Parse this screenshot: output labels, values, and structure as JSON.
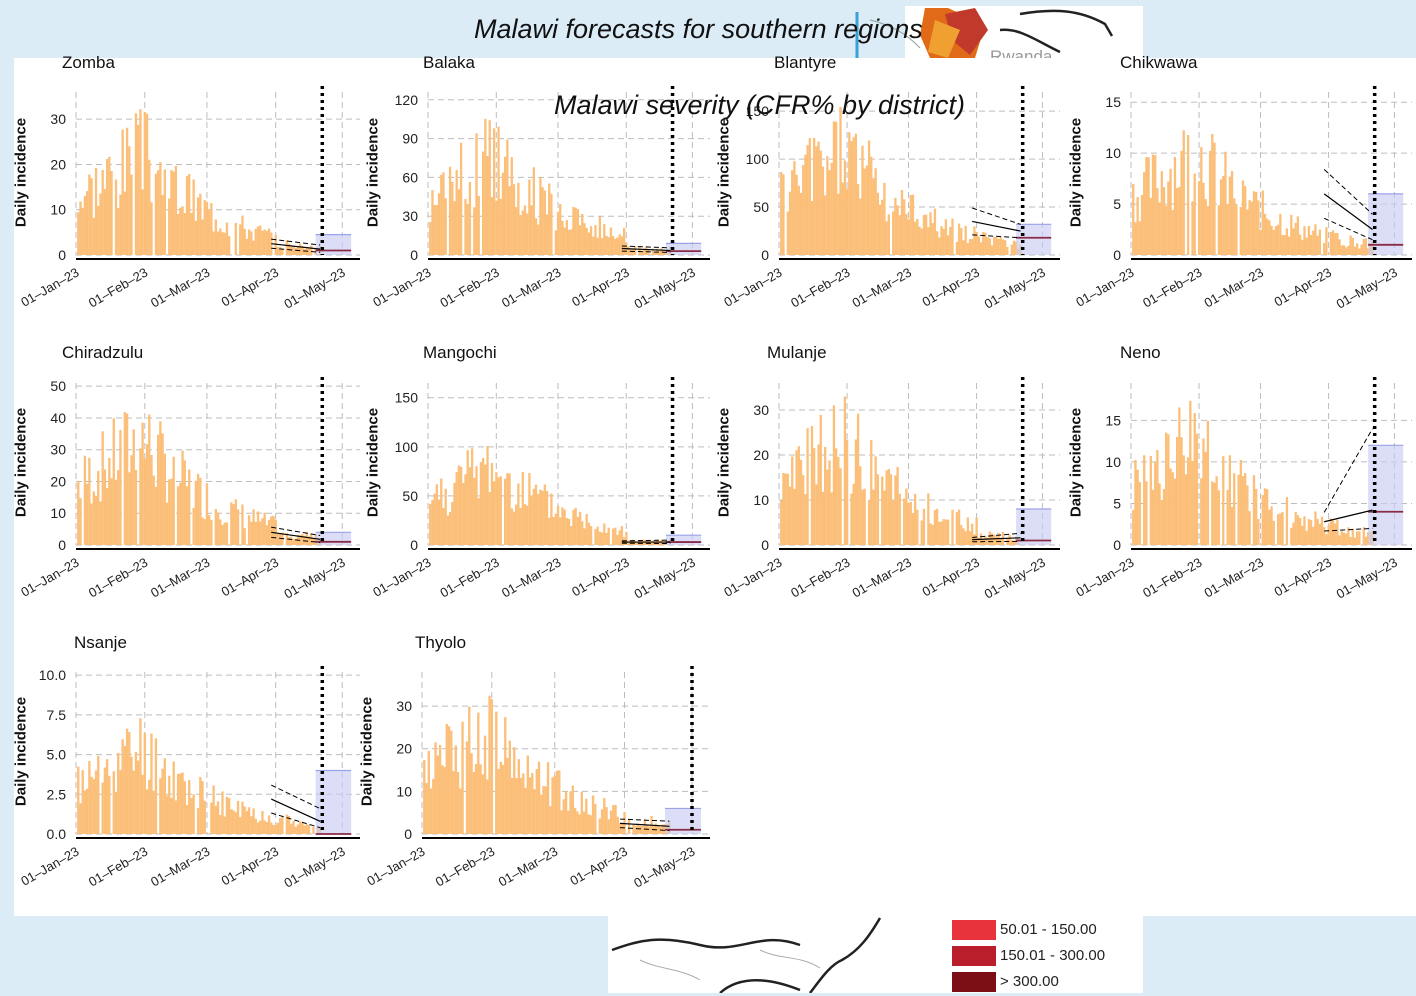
{
  "overlay": {
    "title": "Malawi forecasts for southern regions",
    "subtitle": "Malawi severity (CFR% by district)",
    "map_label": "Rwanda",
    "legend": [
      {
        "label": "50.01 - 150.00",
        "color": "#e8323c"
      },
      {
        "label": "150.01 - 300.00",
        "color": "#b81f2b"
      },
      {
        "label": "> 300.00",
        "color": "#7c0f16"
      }
    ]
  },
  "colors": {
    "bars": "#fbbf79",
    "forecast_band": "#c9cdf3",
    "forecast_line": "#8b2a45",
    "cutoff": "#000000"
  },
  "ylabel": "Daily incidence",
  "chart_data": [
    {
      "type": "bar",
      "title": "Zomba",
      "ylabel": "Daily incidence",
      "x_ticks": [
        "01–Jan–23",
        "01–Feb–23",
        "01–Mar–23",
        "01–Apr–23",
        "01–May–23"
      ],
      "y_ticks": [
        "0",
        "10",
        "20",
        "30"
      ],
      "ylim": [
        0,
        36
      ],
      "cutoff": "2023-04-22",
      "peak_level": 34,
      "tail_level": 4,
      "fit": {
        "start": 2.5,
        "end": 1.3,
        "upper_end": 2.2,
        "lower_end": 0.6
      },
      "forecast": {
        "median": 1,
        "upper": 4.5
      }
    },
    {
      "type": "bar",
      "title": "Balaka",
      "ylabel": "Daily incidence",
      "x_ticks": [
        "01–Jan–23",
        "01–Feb–23",
        "01–Mar–23",
        "01–Apr–23",
        "01–May–23"
      ],
      "y_ticks": [
        "0",
        "30",
        "60",
        "90",
        "120"
      ],
      "ylim": [
        0,
        126
      ],
      "cutoff": "2023-04-22",
      "peak_level": 117,
      "tail_level": 7,
      "fit": {
        "start": 5,
        "end": 3.5,
        "upper_end": 5.5,
        "lower_end": 2
      },
      "forecast": {
        "median": 3,
        "upper": 9
      }
    },
    {
      "type": "bar",
      "title": "Blantyre",
      "ylabel": "Daily incidence",
      "x_ticks": [
        "01–Jan–23",
        "01–Feb–23",
        "01–Mar–23",
        "01–Apr–23",
        "01–May–23"
      ],
      "y_ticks": [
        "0",
        "50",
        "100",
        "150"
      ],
      "ylim": [
        0,
        170
      ],
      "cutoff": "2023-04-22",
      "peak_level": 165,
      "tail_level": 40,
      "fit": {
        "start": 35,
        "end": 25,
        "upper_end": 32,
        "lower_end": 18
      },
      "forecast": {
        "median": 18,
        "upper": 32
      }
    },
    {
      "type": "bar",
      "title": "Chikwawa",
      "ylabel": "Daily incidence",
      "x_ticks": [
        "01–Jan–23",
        "01–Feb–23",
        "01–Mar–23",
        "01–Apr–23",
        "01–May–23"
      ],
      "y_ticks": [
        "0",
        "5",
        "10",
        "15"
      ],
      "ylim": [
        0,
        16
      ],
      "cutoff": "2023-04-22",
      "peak_level": 15,
      "tail_level": 10,
      "fit": {
        "start": 6,
        "end": 2.5,
        "upper_end": 4,
        "lower_end": 1.5
      },
      "forecast": {
        "median": 1,
        "upper": 6
      }
    },
    {
      "type": "bar",
      "title": "Chiradzulu",
      "ylabel": "Daily incidence",
      "x_ticks": [
        "01–Jan–23",
        "01–Feb–23",
        "01–Mar–23",
        "01–Apr–23",
        "01–May–23"
      ],
      "y_ticks": [
        "0",
        "10",
        "20",
        "30",
        "40",
        "50"
      ],
      "ylim": [
        0,
        51
      ],
      "cutoff": "2023-04-22",
      "peak_level": 50,
      "tail_level": 6,
      "fit": {
        "start": 4,
        "end": 1.8,
        "upper_end": 3,
        "lower_end": 0.8
      },
      "forecast": {
        "median": 1,
        "upper": 4
      }
    },
    {
      "type": "bar",
      "title": "Mangochi",
      "ylabel": "Daily incidence",
      "x_ticks": [
        "01–Jan–23",
        "01–Feb–23",
        "01–Mar–23",
        "01–Apr–23",
        "01–May–23"
      ],
      "y_ticks": [
        "0",
        "50",
        "100",
        "150"
      ],
      "ylim": [
        0,
        165
      ],
      "cutoff": "2023-04-22",
      "peak_level": 122,
      "tail_level": 6,
      "fit": {
        "start": 3,
        "end": 3,
        "upper_end": 5,
        "lower_end": 1.5
      },
      "forecast": {
        "median": 3,
        "upper": 10
      }
    },
    {
      "type": "bar",
      "title": "Mulanje",
      "ylabel": "Daily incidence",
      "x_ticks": [
        "01–Jan–23",
        "01–Feb–23",
        "01–Mar–23",
        "01–Apr–23",
        "01–May–23"
      ],
      "y_ticks": [
        "0",
        "10",
        "20",
        "30"
      ],
      "ylim": [
        0,
        36
      ],
      "cutoff": "2023-04-22",
      "peak_level": 35,
      "tail_level": 3,
      "fit": {
        "start": 1.2,
        "end": 1.6,
        "upper_end": 2.6,
        "lower_end": 0.8
      },
      "forecast": {
        "median": 1,
        "upper": 8
      }
    },
    {
      "type": "bar",
      "title": "Neno",
      "ylabel": "Daily incidence",
      "x_ticks": [
        "01–Jan–23",
        "01–Feb–23",
        "01–Mar–23",
        "01–Apr–23",
        "01–May–23"
      ],
      "y_ticks": [
        "0",
        "5",
        "10",
        "15"
      ],
      "ylim": [
        0,
        19.5
      ],
      "cutoff": "2023-04-22",
      "peak_level": 19,
      "tail_level": 18,
      "fit": {
        "start": 2.8,
        "end": 4.2,
        "upper_end": 14,
        "lower_end": 2
      },
      "forecast": {
        "median": 4,
        "upper": 12
      }
    },
    {
      "type": "bar",
      "title": "Nsanje",
      "ylabel": "Daily incidence",
      "x_ticks": [
        "01–Jan–23",
        "01–Feb–23",
        "01–Mar–23",
        "01–Apr–23",
        "01–May–23"
      ],
      "y_ticks": [
        "0.0",
        "2.5",
        "5.0",
        "7.5",
        "10.0"
      ],
      "ylim": [
        0,
        10.2
      ],
      "cutoff": "2023-04-22",
      "peak_level": 8,
      "tail_level": 4,
      "fit": {
        "start": 2.2,
        "end": 0.8,
        "upper_end": 1.6,
        "lower_end": 0.4
      },
      "forecast": {
        "median": 0,
        "upper": 4
      }
    },
    {
      "type": "bar",
      "title": "Thyolo",
      "ylabel": "Daily incidence",
      "x_ticks": [
        "01–Jan–23",
        "01–Feb–23",
        "01–Mar–23",
        "01–Apr–23",
        "01–May–23"
      ],
      "y_ticks": [
        "0",
        "10",
        "20",
        "30"
      ],
      "ylim": [
        0,
        38
      ],
      "cutoff": "2023-05-01",
      "peak_level": 37,
      "tail_level": 5,
      "fit": {
        "start": 2.5,
        "end": 1.8,
        "upper_end": 3,
        "lower_end": 0.8
      },
      "forecast": {
        "median": 1,
        "upper": 6
      }
    }
  ]
}
